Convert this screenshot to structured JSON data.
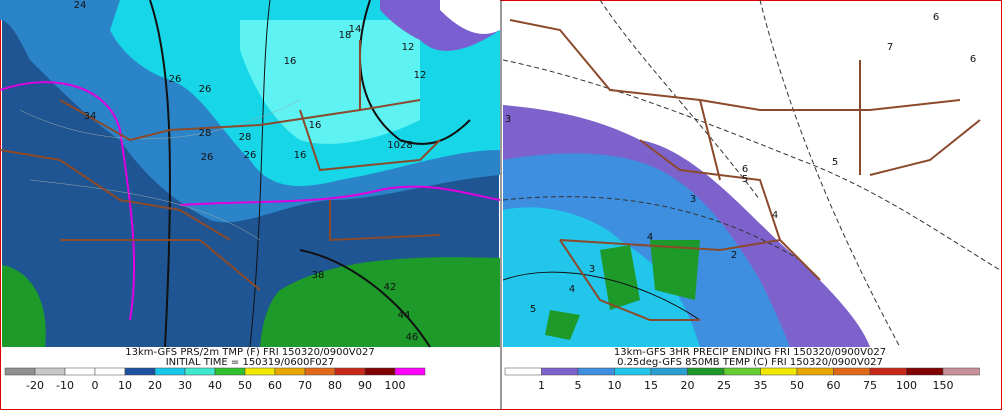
{
  "left_panel": {
    "caption_line1": "13km-GFS PRS/2m TMP (F) FRI 150320/0900V027",
    "caption_line2": "INITIAL TIME = 150319/0600F027",
    "colorbar_labels": [
      -20,
      -10,
      0,
      10,
      20,
      30,
      40,
      50,
      60,
      70,
      80,
      90,
      100
    ],
    "contour_labels": [
      "24",
      "26",
      "26",
      "28",
      "28",
      "34",
      "16",
      "16",
      "18",
      "16",
      "12",
      "12",
      "14",
      "26",
      "26",
      "1028",
      "42",
      "44",
      "46",
      "38"
    ]
  },
  "right_panel": {
    "caption_line1": "13km-GFS 3HR PRECIP ENDING FRI 150320/0900V027",
    "caption_line2": "0.25deg-GFS 850MB TEMP (C) FRI 150320/0900V027",
    "colorbar_labels": [
      1,
      5,
      10,
      15,
      20,
      25,
      35,
      50,
      60,
      75,
      100,
      150
    ],
    "contour_labels": [
      "3",
      "3",
      "4",
      "5",
      "6",
      "5",
      "4",
      "2",
      "5",
      "6",
      "7",
      "6",
      "3",
      "4"
    ]
  }
}
